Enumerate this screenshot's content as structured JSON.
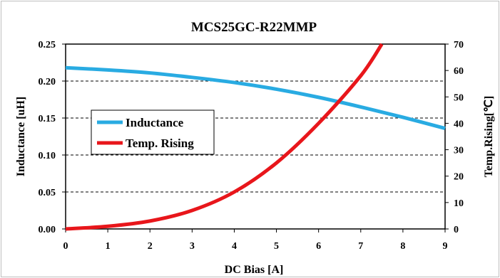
{
  "chart_data": {
    "type": "line",
    "title": "MCS25GC-R22MMP",
    "xlabel": "DC Bias [A]",
    "ylabel": "Inductance [uH]",
    "y2label": "Temp.Rising[℃]",
    "xlim": [
      0,
      9
    ],
    "ylim": [
      0,
      0.25
    ],
    "y2lim": [
      0,
      70
    ],
    "x_ticks": [
      "0",
      "1",
      "2",
      "3",
      "4",
      "5",
      "6",
      "7",
      "8",
      "9"
    ],
    "y_ticks": [
      "0.00",
      "0.05",
      "0.10",
      "0.15",
      "0.20",
      "0.25"
    ],
    "y2_ticks": [
      "0",
      "10",
      "20",
      "30",
      "40",
      "50",
      "60",
      "70"
    ],
    "grid": "horizontal dashed",
    "legend_position": "center-left",
    "series": [
      {
        "name": "Inductance",
        "axis": "left",
        "color": "#29abe2",
        "x": [
          0,
          1,
          2,
          3,
          4,
          5,
          6,
          7,
          8,
          9
        ],
        "y": [
          0.218,
          0.215,
          0.211,
          0.205,
          0.198,
          0.189,
          0.178,
          0.165,
          0.151,
          0.136
        ]
      },
      {
        "name": "Temp. Rising",
        "axis": "right",
        "color": "#e8161b",
        "x": [
          0,
          1,
          2,
          3,
          4,
          5,
          6,
          7,
          7.5
        ],
        "y": [
          0,
          1,
          3,
          7,
          14,
          25,
          40,
          58,
          70
        ]
      }
    ]
  }
}
